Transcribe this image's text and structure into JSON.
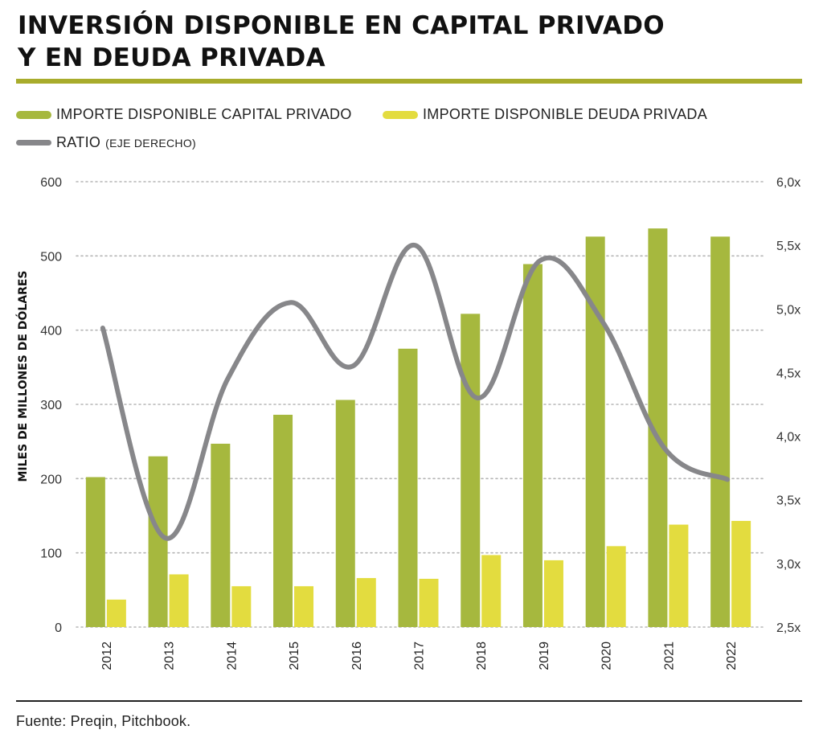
{
  "header": {
    "title_line1": "INVERSIÓN DISPONIBLE EN CAPITAL PRIVADO",
    "title_line2": "Y EN DEUDA PRIVADA"
  },
  "legend": {
    "capital_label": "IMPORTE DISPONIBLE CAPITAL PRIVADO",
    "deuda_label": "IMPORTE DISPONIBLE DEUDA PRIVADA",
    "ratio_label": "RATIO",
    "ratio_note": "(EJE DERECHO)"
  },
  "footer": {
    "source": "Fuente: Preqin, Pitchbook."
  },
  "colors": {
    "capital": "#a6b83e",
    "deuda": "#e3dc3f",
    "ratio": "#87878a",
    "accent_rule": "#a8ac2c",
    "grid": "#b5b5b5"
  },
  "chart_data": {
    "type": "bar",
    "categories": [
      "2012",
      "2013",
      "2014",
      "2015",
      "2016",
      "2017",
      "2018",
      "2019",
      "2020",
      "2021",
      "2022"
    ],
    "series": [
      {
        "name": "IMPORTE DISPONIBLE CAPITAL PRIVADO",
        "axis": "left",
        "type": "bar",
        "values": [
          202,
          230,
          247,
          286,
          306,
          375,
          422,
          489,
          526,
          537,
          526
        ]
      },
      {
        "name": "IMPORTE DISPONIBLE DEUDA PRIVADA",
        "axis": "left",
        "type": "bar",
        "values": [
          37,
          71,
          55,
          55,
          66,
          65,
          97,
          90,
          109,
          138,
          143
        ]
      },
      {
        "name": "RATIO",
        "axis": "right",
        "type": "line",
        "values": [
          4.85,
          3.2,
          4.45,
          5.05,
          4.55,
          5.5,
          4.3,
          5.38,
          4.9,
          3.9,
          3.66
        ]
      }
    ],
    "ylabel": "MILES DE MILLONES DE DÓLARES",
    "ylim": [
      0,
      600
    ],
    "yticks": [
      "0",
      "100",
      "200",
      "300",
      "400",
      "500",
      "600"
    ],
    "y2lim": [
      2.5,
      6.0
    ],
    "y2ticks": [
      "2,5x",
      "3,0x",
      "3,5x",
      "4,0x",
      "4,5x",
      "5,0x",
      "5,5x",
      "6,0x"
    ],
    "grid": true,
    "legend_position": "top-left"
  }
}
